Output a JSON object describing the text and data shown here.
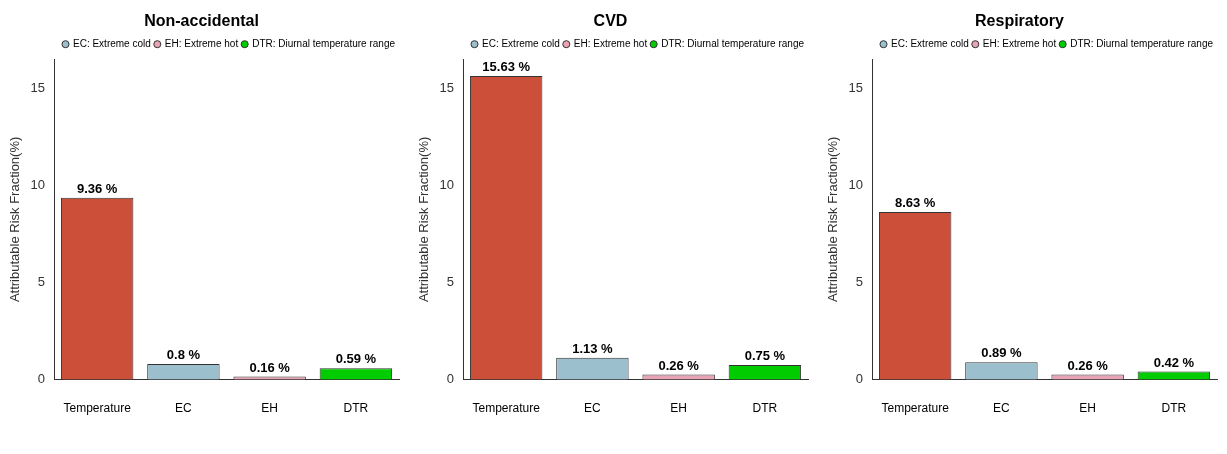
{
  "chart_data": [
    {
      "type": "bar",
      "title": "Non-accidental",
      "ylabel": "Attributable Risk Fraction(%)",
      "categories": [
        "Temperature",
        "EC",
        "EH",
        "DTR"
      ],
      "ylim": [
        0,
        16.5
      ],
      "yticks": [
        0,
        5,
        10,
        15
      ],
      "grid": false,
      "legend": "top right",
      "series": [
        {
          "color": "#cc4f3a",
          "values": [
            9.36,
            null,
            null,
            null
          ],
          "value_labels": [
            "9.36 %",
            null,
            null,
            null
          ]
        },
        {
          "name": "EC: Extreme cold",
          "color": "#9bbfcc",
          "values": [
            null,
            0.8,
            null,
            null
          ],
          "value_labels": [
            null,
            "0.8 %",
            null,
            null
          ]
        },
        {
          "name": "EH: Extreme hot",
          "color": "#e8a4b4",
          "values": [
            null,
            null,
            0.16,
            null
          ],
          "value_labels": [
            null,
            null,
            "0.16 %",
            null
          ]
        },
        {
          "name": "DTR: Diurnal temperature range",
          "color": "#00cc00",
          "values": [
            null,
            null,
            null,
            0.59
          ],
          "value_labels": [
            null,
            null,
            null,
            "0.59 %"
          ]
        }
      ]
    },
    {
      "type": "bar",
      "title": "CVD",
      "ylabel": "Attributable Risk Fraction(%)",
      "categories": [
        "Temperature",
        "EC",
        "EH",
        "DTR"
      ],
      "ylim": [
        0,
        16.5
      ],
      "yticks": [
        0,
        5,
        10,
        15
      ],
      "grid": false,
      "legend": "top right",
      "series": [
        {
          "color": "#cc4f3a",
          "values": [
            15.63,
            null,
            null,
            null
          ],
          "value_labels": [
            "15.63 %",
            null,
            null,
            null
          ]
        },
        {
          "name": "EC: Extreme cold",
          "color": "#9bbfcc",
          "values": [
            null,
            1.13,
            null,
            null
          ],
          "value_labels": [
            null,
            "1.13 %",
            null,
            null
          ]
        },
        {
          "name": "EH: Extreme hot",
          "color": "#e8a4b4",
          "values": [
            null,
            null,
            0.26,
            null
          ],
          "value_labels": [
            null,
            null,
            "0.26 %",
            null
          ]
        },
        {
          "name": "DTR: Diurnal temperature range",
          "color": "#00cc00",
          "values": [
            null,
            null,
            null,
            0.75
          ],
          "value_labels": [
            null,
            null,
            null,
            "0.75 %"
          ]
        }
      ]
    },
    {
      "type": "bar",
      "title": "Respiratory",
      "ylabel": "Attributable Risk Fraction(%)",
      "categories": [
        "Temperature",
        "EC",
        "EH",
        "DTR"
      ],
      "ylim": [
        0,
        16.5
      ],
      "yticks": [
        0,
        5,
        10,
        15
      ],
      "grid": false,
      "legend": "top right",
      "series": [
        {
          "color": "#cc4f3a",
          "values": [
            8.63,
            null,
            null,
            null
          ],
          "value_labels": [
            "8.63 %",
            null,
            null,
            null
          ]
        },
        {
          "name": "EC: Extreme cold",
          "color": "#9bbfcc",
          "values": [
            null,
            0.89,
            null,
            null
          ],
          "value_labels": [
            null,
            "0.89 %",
            null,
            null
          ]
        },
        {
          "name": "EH: Extreme hot",
          "color": "#e8a4b4",
          "values": [
            null,
            null,
            0.26,
            null
          ],
          "value_labels": [
            null,
            null,
            "0.26 %",
            null
          ]
        },
        {
          "name": "DTR: Diurnal temperature range",
          "color": "#00cc00",
          "values": [
            null,
            null,
            null,
            0.42
          ],
          "value_labels": [
            null,
            null,
            null,
            "0.42 %"
          ]
        }
      ]
    }
  ]
}
